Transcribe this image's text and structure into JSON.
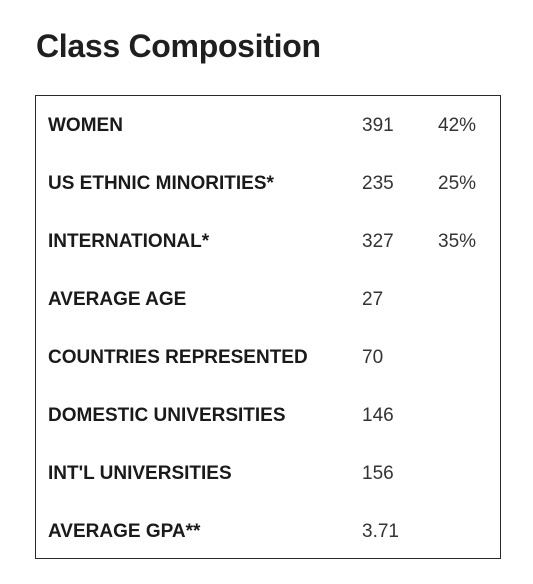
{
  "header": {
    "title": "Class Composition"
  },
  "rows": [
    {
      "label": "WOMEN",
      "count": "391",
      "percent": "42%"
    },
    {
      "label": "US ETHNIC MINORITIES*",
      "count": "235",
      "percent": "25%"
    },
    {
      "label": "INTERNATIONAL*",
      "count": "327",
      "percent": "35%"
    },
    {
      "label": "AVERAGE AGE",
      "count": "27",
      "percent": ""
    },
    {
      "label": "COUNTRIES REPRESENTED",
      "count": "70",
      "percent": ""
    },
    {
      "label": "DOMESTIC UNIVERSITIES",
      "count": "146",
      "percent": ""
    },
    {
      "label": "INT'L UNIVERSITIES",
      "count": "156",
      "percent": ""
    },
    {
      "label": "AVERAGE GPA**",
      "count": "3.71",
      "percent": ""
    }
  ]
}
